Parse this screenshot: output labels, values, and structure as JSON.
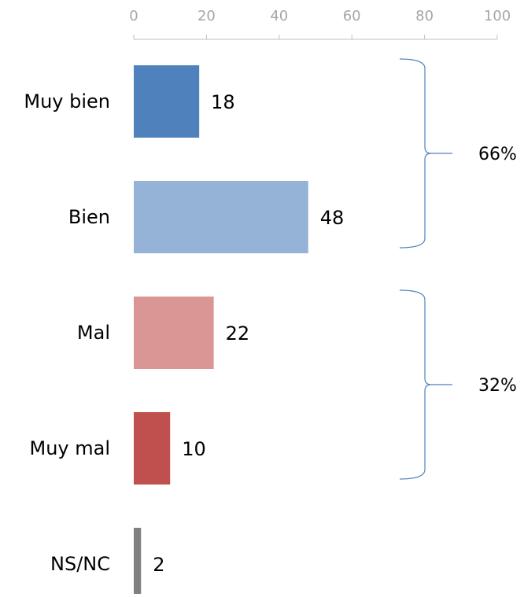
{
  "chart_data": {
    "type": "bar",
    "orientation": "horizontal",
    "categories": [
      "Muy bien",
      "Bien",
      "Mal",
      "Muy mal",
      "NS/NC"
    ],
    "values": [
      18,
      48,
      22,
      10,
      2
    ],
    "colors": [
      "#4f81bd",
      "#95b3d7",
      "#da9694",
      "#c0504d",
      "#808080"
    ],
    "xlim": [
      0,
      100
    ],
    "xticks": [
      0,
      20,
      40,
      60,
      80,
      100
    ],
    "grid": false,
    "annotations": [
      "66%",
      "32%"
    ]
  }
}
